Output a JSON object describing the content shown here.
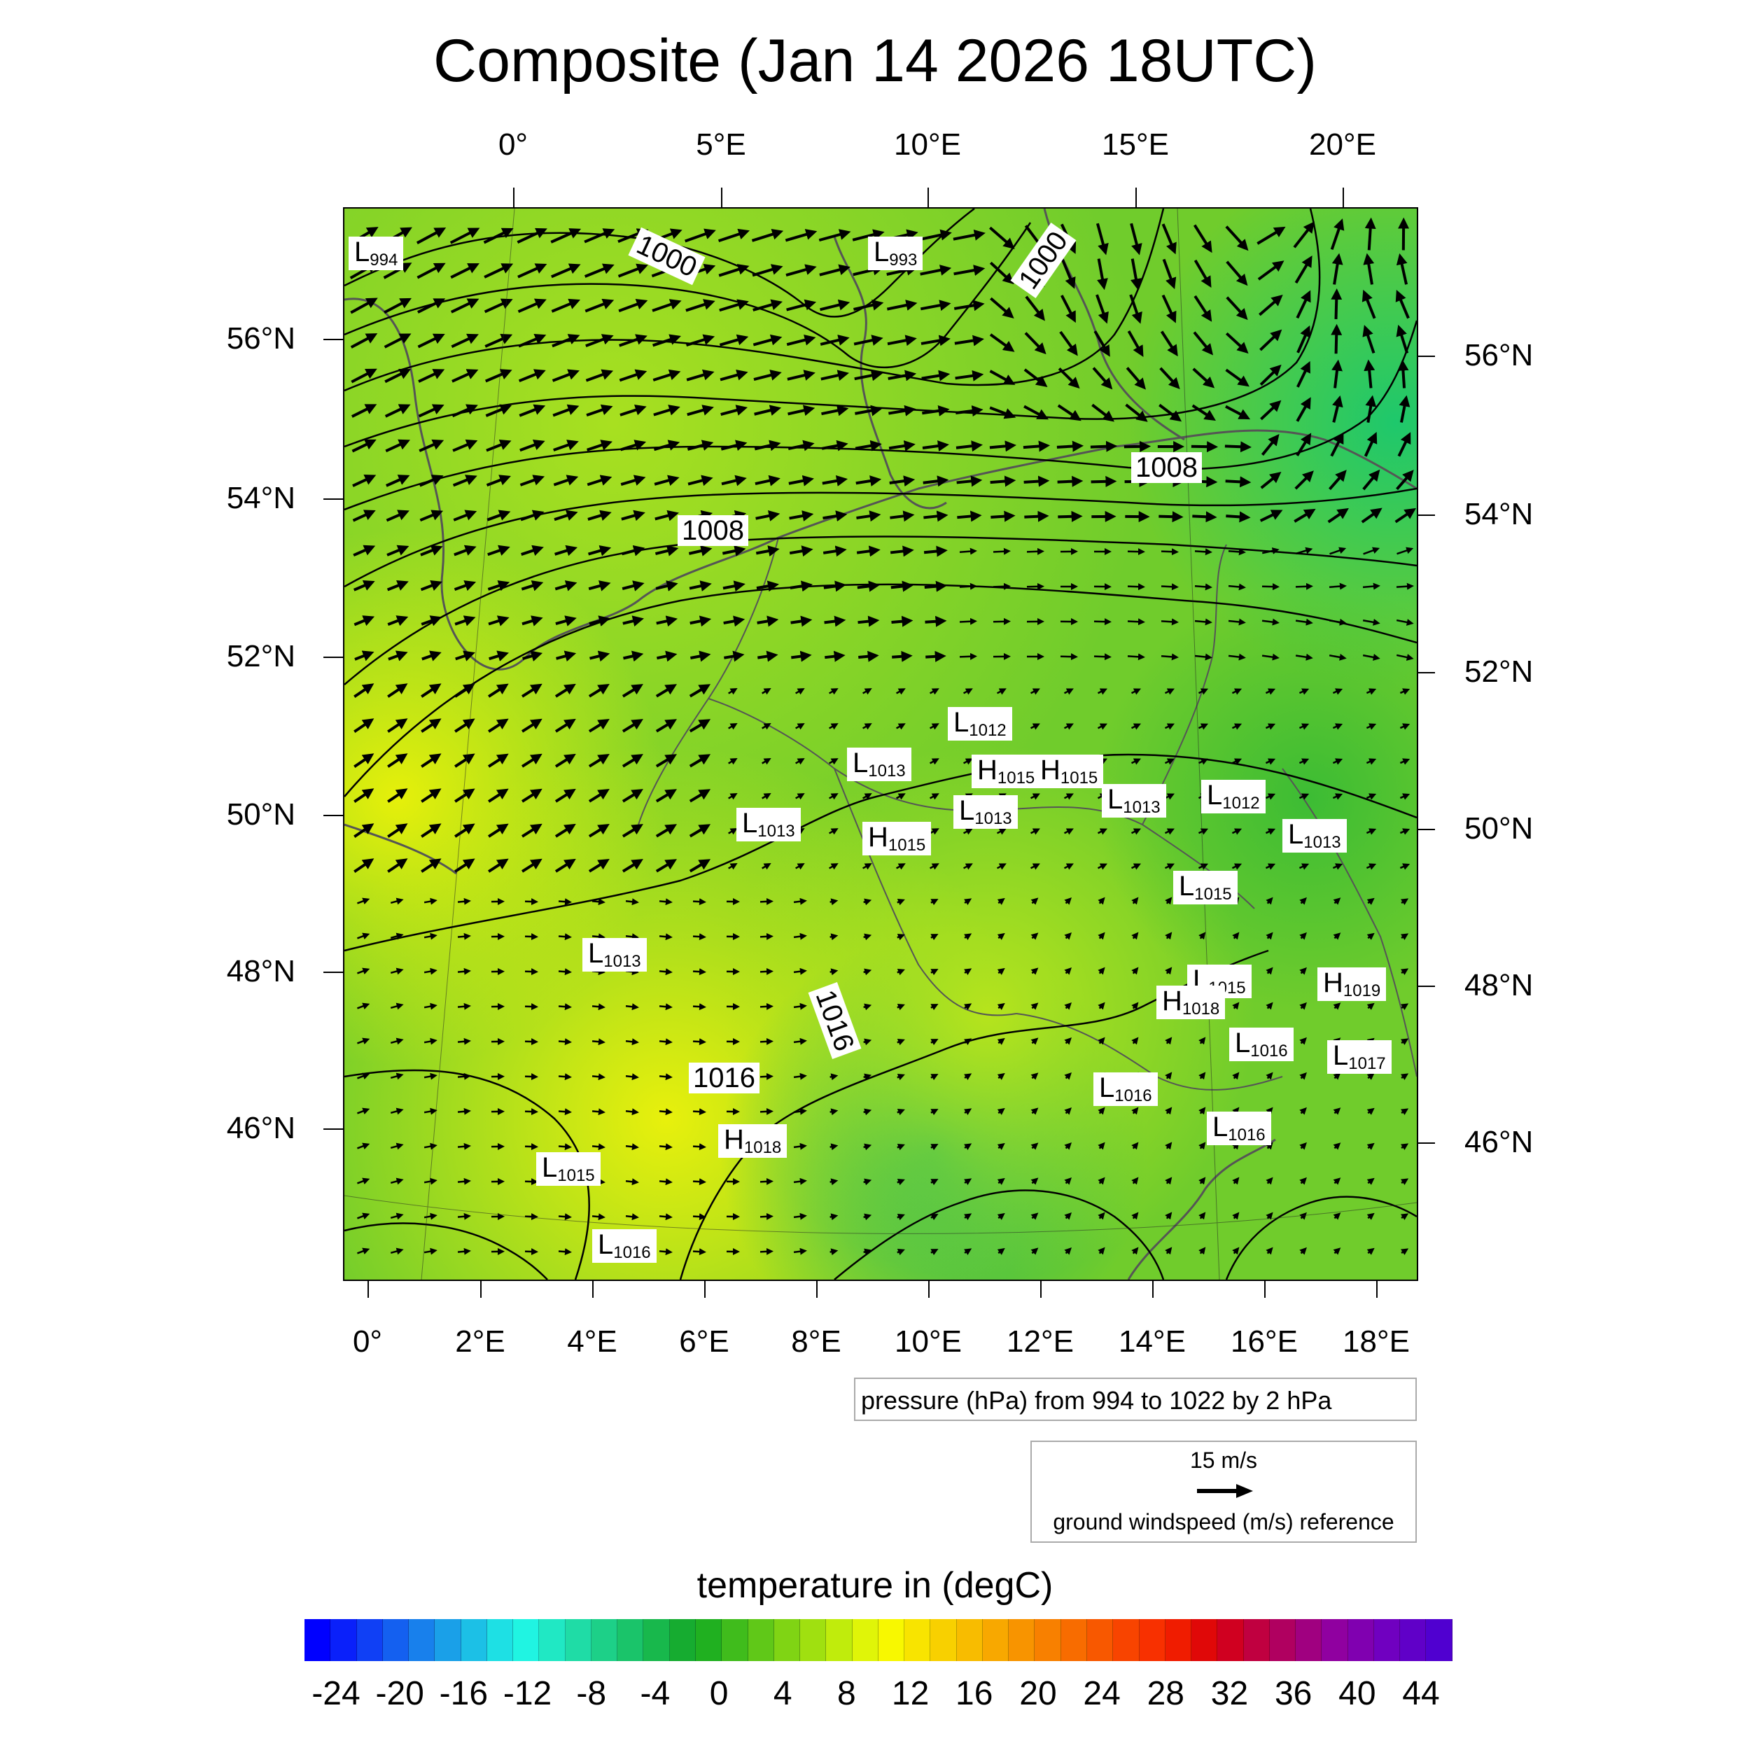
{
  "title": "Composite (Jan 14 2026 18UTC)",
  "top_lon_labels": [
    "0°",
    "5°E",
    "10°E",
    "15°E",
    "20°E"
  ],
  "bottom_lon_labels": [
    "0°",
    "2°E",
    "4°E",
    "6°E",
    "8°E",
    "10°E",
    "12°E",
    "14°E",
    "16°E",
    "18°E"
  ],
  "left_lat_labels": [
    "56°N",
    "54°N",
    "52°N",
    "50°N",
    "48°N",
    "46°N"
  ],
  "right_lat_labels": [
    "56°N",
    "54°N",
    "52°N",
    "50°N",
    "48°N",
    "46°N"
  ],
  "pressure_legend": "pressure (hPa) from 994 to 1022 by 2 hPa",
  "wind_legend": {
    "reference_speed": "15 m/s",
    "caption": "ground windspeed (m/s) reference"
  },
  "colorbar": {
    "title": "temperature in (degC)",
    "tick_labels": [
      "-24",
      "-20",
      "-16",
      "-12",
      "-8",
      "-4",
      "0",
      "4",
      "8",
      "12",
      "16",
      "20",
      "24",
      "28",
      "32",
      "36",
      "40",
      "44"
    ],
    "colors": [
      "#0000ff",
      "#0a20fa",
      "#1040f5",
      "#1460f0",
      "#1880ec",
      "#1aa0e8",
      "#1cc0e6",
      "#1ee0e4",
      "#20f4e2",
      "#20e8c4",
      "#1fdca6",
      "#1dd088",
      "#1ac46a",
      "#18b84c",
      "#16ac30",
      "#20b020",
      "#40bc1c",
      "#60c818",
      "#80d414",
      "#a0e010",
      "#c0ec0c",
      "#e0f508",
      "#f8f800",
      "#f8e400",
      "#f8d000",
      "#f8bc00",
      "#f8a800",
      "#f89400",
      "#f88000",
      "#f86c00",
      "#f85800",
      "#f84400",
      "#f83000",
      "#f01c00",
      "#e00808",
      "#d00020",
      "#c00040",
      "#b00060",
      "#a00080",
      "#9000a0",
      "#8000b0",
      "#7000c0",
      "#6000c8",
      "#5000d0"
    ]
  },
  "pressure_centers": [
    {
      "type": "L",
      "value": "994"
    },
    {
      "type": "L",
      "value": "993"
    },
    {
      "type": "L",
      "value": "1012"
    },
    {
      "type": "L",
      "value": "1013"
    },
    {
      "type": "H",
      "value": "1015"
    },
    {
      "type": "H",
      "value": "1015"
    },
    {
      "type": "L",
      "value": "1013"
    },
    {
      "type": "L",
      "value": "1013"
    },
    {
      "type": "L",
      "value": "1012"
    },
    {
      "type": "H",
      "value": "1015"
    },
    {
      "type": "L",
      "value": "1013"
    },
    {
      "type": "L",
      "value": "1013"
    },
    {
      "type": "L",
      "value": "1015"
    },
    {
      "type": "L",
      "value": "1013"
    },
    {
      "type": "L",
      "value": "1015"
    },
    {
      "type": "H",
      "value": "1018"
    },
    {
      "type": "H",
      "value": "1019"
    },
    {
      "type": "L",
      "value": "1016"
    },
    {
      "type": "L",
      "value": "1017"
    },
    {
      "type": "L",
      "value": "1016"
    },
    {
      "type": "L",
      "value": "1016"
    },
    {
      "type": "H",
      "value": "1018"
    },
    {
      "type": "L",
      "value": "1015"
    },
    {
      "type": "L",
      "value": "1016"
    }
  ],
  "contour_labels": [
    "1000",
    "1000",
    "1008",
    "1008",
    "1016",
    "1016"
  ]
}
